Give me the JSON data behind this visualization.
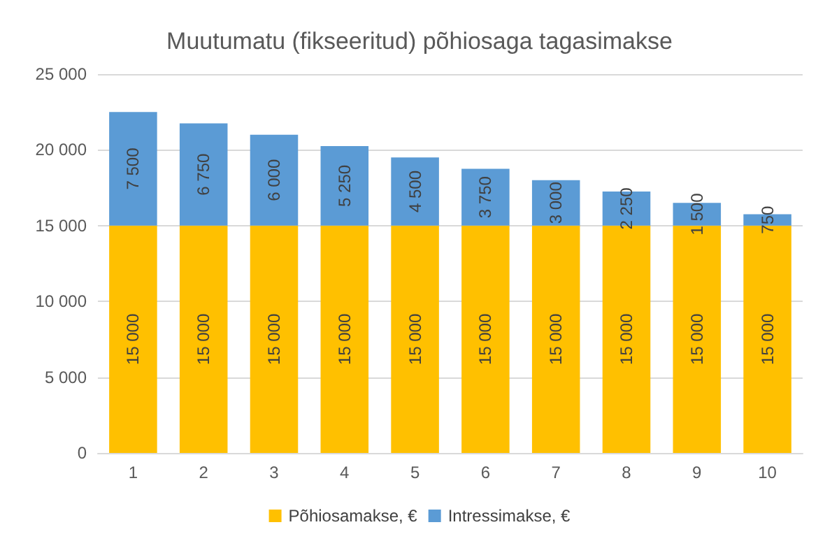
{
  "chart_data": {
    "type": "bar",
    "title": "Muutumatu (fikseeritud) põhiosaga tagasimakse",
    "stacked": true,
    "categories": [
      "1",
      "2",
      "3",
      "4",
      "5",
      "6",
      "7",
      "8",
      "9",
      "10"
    ],
    "series": [
      {
        "name": "Põhiosamakse, €",
        "color": "#ffc000",
        "values": [
          15000,
          15000,
          15000,
          15000,
          15000,
          15000,
          15000,
          15000,
          15000,
          15000
        ],
        "value_labels": [
          "15 000",
          "15 000",
          "15 000",
          "15 000",
          "15 000",
          "15 000",
          "15 000",
          "15 000",
          "15 000",
          "15 000"
        ]
      },
      {
        "name": "Intressimakse, €",
        "color": "#5b9bd5",
        "values": [
          7500,
          6750,
          6000,
          5250,
          4500,
          3750,
          3000,
          2250,
          1500,
          750
        ],
        "value_labels": [
          "7 500",
          "6 750",
          "6 000",
          "5 250",
          "4 500",
          "3 750",
          "3 000",
          "2 250",
          "1 500",
          "750"
        ]
      }
    ],
    "ylim": [
      0,
      25000
    ],
    "yticks": [
      {
        "value": 0,
        "label": "0"
      },
      {
        "value": 5000,
        "label": "5 000"
      },
      {
        "value": 10000,
        "label": "10 000"
      },
      {
        "value": 15000,
        "label": "15 000"
      },
      {
        "value": 20000,
        "label": "20 000"
      },
      {
        "value": 25000,
        "label": "25 000"
      }
    ],
    "grid": "y",
    "legend": "bottom"
  }
}
